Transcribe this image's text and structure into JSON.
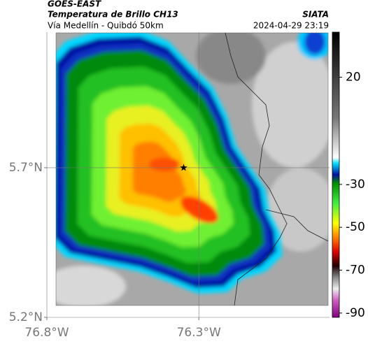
{
  "header": {
    "source": "GOES-EAST",
    "product": "Temperatura de Brillo CH13",
    "route": "Vía Medellín - Quibdó 50km",
    "agency": "SIATA",
    "timestamp": "2024-04-29 23:19"
  },
  "map": {
    "xlim": [
      -76.8,
      -75.87
    ],
    "ylim": [
      5.2,
      6.153
    ],
    "xticks": [
      {
        "value": -76.8,
        "label": "76.8°W"
      },
      {
        "value": -76.3,
        "label": "76.3°W"
      }
    ],
    "yticks": [
      {
        "value": 5.2,
        "label": "5.2°N"
      },
      {
        "value": 5.7,
        "label": "5.7°N"
      }
    ],
    "grid": true,
    "marker": {
      "lon": -76.35,
      "lat": 5.7
    }
  },
  "colorbar": {
    "lim": [
      -92,
      41
    ],
    "ticks": [
      20,
      -30,
      -50,
      -70,
      -90
    ]
  }
}
